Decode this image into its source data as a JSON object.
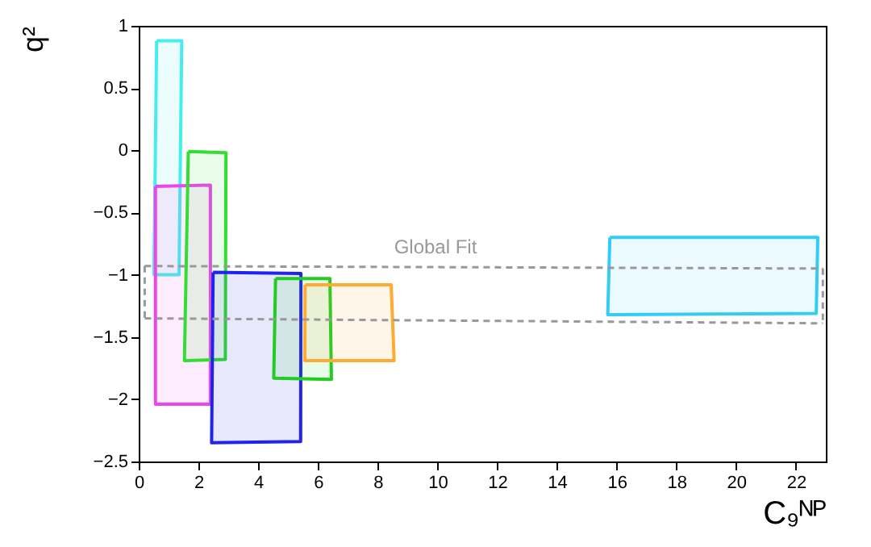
{
  "chart_data": {
    "type": "line",
    "xlabel": "C₉ᴺᴾ",
    "ylabel": "q²",
    "xlim": [
      0,
      23
    ],
    "ylim": [
      -2.5,
      1
    ],
    "xticks": [
      0,
      2,
      4,
      6,
      8,
      10,
      12,
      14,
      16,
      18,
      20,
      22
    ],
    "yticks": [
      -2.5,
      -2,
      -1.5,
      -1,
      -0.5,
      0,
      0.5,
      1
    ],
    "grid": false,
    "marker": "none",
    "line_style": "solid",
    "annotations": [
      "Global Fit"
    ],
    "series": [
      {
        "type": "area",
        "color": "#44eeee",
        "x": [
          0.6,
          1.44,
          1.35,
          0.51,
          0.6
        ],
        "values": [
          0.88,
          0.88,
          -1.0,
          -1.0,
          0.88
        ]
      },
      {
        "type": "area",
        "color": "#ee44ee",
        "x": [
          0.56,
          2.4,
          2.4,
          0.56,
          0.56
        ],
        "values": [
          -0.29,
          -0.28,
          -2.04,
          -2.04,
          -0.29
        ]
      },
      {
        "type": "area",
        "color": "#33dd33",
        "x": [
          1.66,
          2.92,
          2.9,
          1.53,
          1.66
        ],
        "values": [
          -0.01,
          -0.02,
          -1.68,
          -1.69,
          -0.01
        ]
      },
      {
        "type": "area",
        "color": "#2222ee",
        "x": [
          2.49,
          5.43,
          5.42,
          2.44,
          2.49
        ],
        "values": [
          -0.98,
          -0.99,
          -2.34,
          -2.35,
          -0.98
        ]
      },
      {
        "type": "area",
        "color": "#22cc22",
        "x": [
          4.58,
          6.4,
          6.45,
          4.52,
          4.58
        ],
        "values": [
          -1.03,
          -1.03,
          -1.84,
          -1.83,
          -1.03
        ]
      },
      {
        "type": "area",
        "color": "#ffaa33",
        "x": [
          5.57,
          8.45,
          8.55,
          5.56,
          5.57
        ],
        "values": [
          -1.08,
          -1.08,
          -1.69,
          -1.69,
          -1.08
        ]
      },
      {
        "type": "area",
        "color": "#33ccf5",
        "x": [
          15.77,
          22.73,
          22.68,
          15.7,
          15.77
        ],
        "values": [
          -0.7,
          -0.7,
          -1.31,
          -1.32,
          -0.7
        ]
      },
      {
        "color": "#999999",
        "line_style": "dashed",
        "x": [
          0.2,
          22.9
        ],
        "values": [
          -0.93,
          -0.95
        ]
      },
      {
        "color": "#999999",
        "line_style": "dashed",
        "x": [
          0.2,
          22.9
        ],
        "values": [
          -1.35,
          -1.39
        ]
      },
      {
        "color": "#999999",
        "line_style": "dashed",
        "x": [
          0.2,
          0.2
        ],
        "values": [
          -0.93,
          -1.35
        ]
      },
      {
        "color": "#999999",
        "line_style": "dashed",
        "x": [
          22.9,
          22.9
        ],
        "values": [
          -0.95,
          -1.39
        ]
      }
    ]
  }
}
